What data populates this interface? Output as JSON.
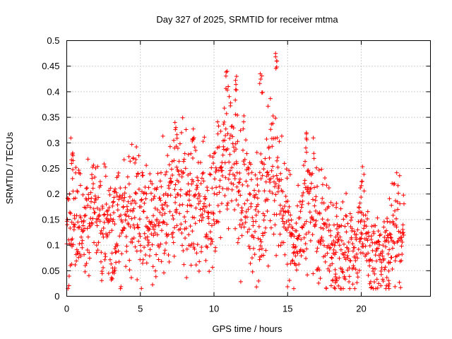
{
  "chart_data": {
    "type": "scatter",
    "title": "Day 327 of 2025, SRMTID for receiver mtma",
    "xlabel": "GPS time / hours",
    "ylabel": "SRMTID / TECUs",
    "xlim": [
      0,
      24.7
    ],
    "ylim": [
      0,
      0.5
    ],
    "xticks": [
      0,
      5,
      10,
      15,
      20
    ],
    "xtick_labels": [
      "0",
      "5",
      "10",
      "15",
      "20"
    ],
    "yticks": [
      0,
      0.05,
      0.1,
      0.15,
      0.2,
      0.25,
      0.3,
      0.35,
      0.4,
      0.45,
      0.5
    ],
    "ytick_labels": [
      "0",
      "0.05",
      "0.1",
      "0.15",
      "0.2",
      "0.25",
      "0.3",
      "0.35",
      "0.4",
      "0.45",
      "0.5"
    ],
    "grid": true,
    "marker": "+",
    "color": "#ff0000",
    "series": [
      {
        "name": "SRMTID",
        "x_range": [
          0,
          22.9
        ],
        "profile": [
          {
            "x": 0.0,
            "y": 0.16
          },
          {
            "x": 0.5,
            "y": 0.17
          },
          {
            "x": 1.0,
            "y": 0.14
          },
          {
            "x": 1.5,
            "y": 0.17
          },
          {
            "x": 2.0,
            "y": 0.16
          },
          {
            "x": 2.5,
            "y": 0.13
          },
          {
            "x": 3.0,
            "y": 0.14
          },
          {
            "x": 3.5,
            "y": 0.15
          },
          {
            "x": 4.0,
            "y": 0.16
          },
          {
            "x": 4.5,
            "y": 0.17
          },
          {
            "x": 5.0,
            "y": 0.16
          },
          {
            "x": 5.5,
            "y": 0.15
          },
          {
            "x": 6.0,
            "y": 0.14
          },
          {
            "x": 6.5,
            "y": 0.16
          },
          {
            "x": 7.0,
            "y": 0.19
          },
          {
            "x": 7.5,
            "y": 0.22
          },
          {
            "x": 8.0,
            "y": 0.2
          },
          {
            "x": 8.5,
            "y": 0.19
          },
          {
            "x": 9.0,
            "y": 0.17
          },
          {
            "x": 9.5,
            "y": 0.15
          },
          {
            "x": 10.0,
            "y": 0.17
          },
          {
            "x": 10.5,
            "y": 0.25
          },
          {
            "x": 11.0,
            "y": 0.27
          },
          {
            "x": 11.5,
            "y": 0.24
          },
          {
            "x": 12.0,
            "y": 0.22
          },
          {
            "x": 12.5,
            "y": 0.16
          },
          {
            "x": 13.0,
            "y": 0.17
          },
          {
            "x": 13.5,
            "y": 0.2
          },
          {
            "x": 14.0,
            "y": 0.22
          },
          {
            "x": 14.5,
            "y": 0.2
          },
          {
            "x": 15.0,
            "y": 0.13
          },
          {
            "x": 15.5,
            "y": 0.12
          },
          {
            "x": 16.0,
            "y": 0.15
          },
          {
            "x": 16.5,
            "y": 0.18
          },
          {
            "x": 17.0,
            "y": 0.15
          },
          {
            "x": 17.5,
            "y": 0.13
          },
          {
            "x": 18.0,
            "y": 0.1
          },
          {
            "x": 18.5,
            "y": 0.11
          },
          {
            "x": 19.0,
            "y": 0.1
          },
          {
            "x": 19.5,
            "y": 0.09
          },
          {
            "x": 20.0,
            "y": 0.13
          },
          {
            "x": 20.5,
            "y": 0.08
          },
          {
            "x": 21.0,
            "y": 0.08
          },
          {
            "x": 21.5,
            "y": 0.07
          },
          {
            "x": 22.0,
            "y": 0.1
          },
          {
            "x": 22.5,
            "y": 0.13
          },
          {
            "x": 22.9,
            "y": 0.14
          }
        ],
        "peaks": [
          {
            "x": 10.9,
            "y": 0.44
          },
          {
            "x": 11.5,
            "y": 0.43
          },
          {
            "x": 13.2,
            "y": 0.435
          },
          {
            "x": 14.2,
            "y": 0.475
          },
          {
            "x": 7.4,
            "y": 0.33
          },
          {
            "x": 8.6,
            "y": 0.31
          },
          {
            "x": 16.3,
            "y": 0.32
          },
          {
            "x": 0.4,
            "y": 0.28
          },
          {
            "x": 20.0,
            "y": 0.225
          },
          {
            "x": 21.8,
            "y": 0.02
          },
          {
            "x": 3.2,
            "y": 0.045
          },
          {
            "x": 18.3,
            "y": 0.03
          }
        ]
      }
    ]
  }
}
